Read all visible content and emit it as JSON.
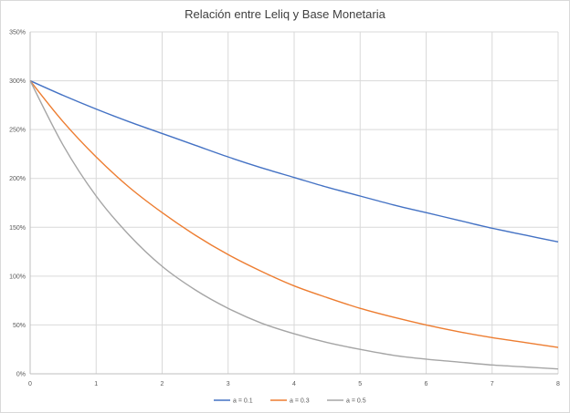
{
  "chart_data": {
    "type": "line",
    "title": "Relación entre Leliq y Base Monetaria",
    "xlabel": "",
    "ylabel": "",
    "x_ticks": [
      "0",
      "1",
      "2",
      "3",
      "4",
      "5",
      "6",
      "7",
      "8"
    ],
    "y_ticks": [
      "0%",
      "50%",
      "100%",
      "150%",
      "200%",
      "250%",
      "300%",
      "350%"
    ],
    "xlim": [
      0,
      8
    ],
    "ylim": [
      0,
      3.5
    ],
    "grid": true,
    "legend_position": "bottom",
    "x": [
      0,
      0.5,
      1,
      1.5,
      2,
      2.5,
      3,
      3.5,
      4,
      4.5,
      5,
      5.5,
      6,
      6.5,
      7,
      7.5,
      8
    ],
    "series": [
      {
        "name": "a = 0.1",
        "color": "#4472c4",
        "values": [
          3.0,
          2.85,
          2.71,
          2.58,
          2.46,
          2.34,
          2.22,
          2.11,
          2.01,
          1.91,
          1.82,
          1.73,
          1.65,
          1.57,
          1.49,
          1.42,
          1.35
        ]
      },
      {
        "name": "a = 0.3",
        "color": "#ed7d31",
        "values": [
          3.0,
          2.58,
          2.22,
          1.91,
          1.65,
          1.42,
          1.22,
          1.05,
          0.9,
          0.78,
          0.67,
          0.58,
          0.5,
          0.43,
          0.37,
          0.32,
          0.27
        ]
      },
      {
        "name": "a = 0.5",
        "color": "#a5a5a5",
        "values": [
          3.0,
          2.34,
          1.82,
          1.42,
          1.1,
          0.86,
          0.67,
          0.52,
          0.41,
          0.32,
          0.25,
          0.19,
          0.15,
          0.12,
          0.09,
          0.07,
          0.05
        ]
      }
    ]
  }
}
